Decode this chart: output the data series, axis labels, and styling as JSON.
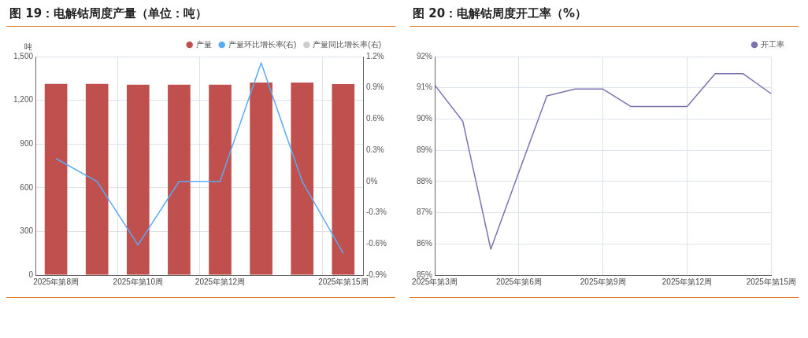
{
  "chart_data": [
    {
      "type": "bar",
      "title": "图 19：电解钴周度产量（单位：吨）",
      "ylabel": "吨",
      "categories": [
        "2025年第8周",
        null,
        "2025年第10周",
        null,
        "2025年第12周",
        null,
        null,
        "2025年第15周"
      ],
      "series": [
        {
          "name": "产量",
          "color": "#c0504d",
          "values": [
            1312,
            1312,
            1307,
            1307,
            1307,
            1322,
            1322,
            1311
          ]
        },
        {
          "name": "产量环比增长率(右)",
          "type": "line",
          "axis": "y2",
          "color": "#5aabf5",
          "values": [
            0.22,
            0,
            -0.61,
            0,
            0,
            1.14,
            0,
            -0.69
          ]
        },
        {
          "name": "产量同比增长率(右)",
          "type": "line",
          "axis": "y2",
          "color": "#cccccc",
          "values": [
            null,
            null,
            null,
            null,
            null,
            null,
            null,
            null
          ]
        }
      ],
      "ylim": [
        0,
        1500
      ],
      "yticks": [
        0,
        {
          "value": 300,
          "label": "300"
        },
        600,
        900,
        {
          "value": 1200,
          "label": "1,200"
        },
        {
          "value": 1500,
          "label": "1,500"
        }
      ],
      "y2lim": [
        -0.9,
        1.2
      ],
      "y2ticks": [
        {
          "value": -0.9,
          "label": "-0.9%"
        },
        {
          "value": -0.6,
          "label": "-0.6%"
        },
        {
          "value": -0.3,
          "label": "-0.3%"
        },
        {
          "value": 0,
          "label": "0%"
        },
        {
          "value": 0.3,
          "label": "0.3%"
        },
        {
          "value": 0.6,
          "label": "0.6%"
        },
        {
          "value": 0.9,
          "label": "0.9%"
        },
        {
          "value": 1.2,
          "label": "1.2%"
        }
      ],
      "grid": true,
      "legend": "top right",
      "marker": "none"
    },
    {
      "type": "line",
      "title": "图 20：电解钴周度开工率（%）",
      "categories": [
        "2025年第3周",
        null,
        null,
        "2025年第6周",
        null,
        null,
        "2025年第9周",
        null,
        null,
        "2025年第12周",
        null,
        null,
        "2025年第15周"
      ],
      "series": [
        {
          "name": "开工率",
          "color": "#7b73b0",
          "values": [
            91.09,
            89.93,
            85.83,
            88.3,
            90.74,
            90.96,
            90.96,
            90.4,
            90.4,
            90.4,
            91.45,
            91.45,
            90.81
          ]
        }
      ],
      "ylim": [
        85,
        92
      ],
      "yticks": [
        {
          "value": 85,
          "label": "85%"
        },
        {
          "value": 86,
          "label": "86%"
        },
        {
          "value": 87,
          "label": "87%"
        },
        {
          "value": 88,
          "label": "88%"
        },
        {
          "value": 89,
          "label": "89%"
        },
        {
          "value": 90,
          "label": "90%"
        },
        {
          "value": 91,
          "label": "91%"
        },
        {
          "value": 92,
          "label": "92%"
        }
      ],
      "grid": true,
      "legend": "top right",
      "marker": "none"
    }
  ]
}
